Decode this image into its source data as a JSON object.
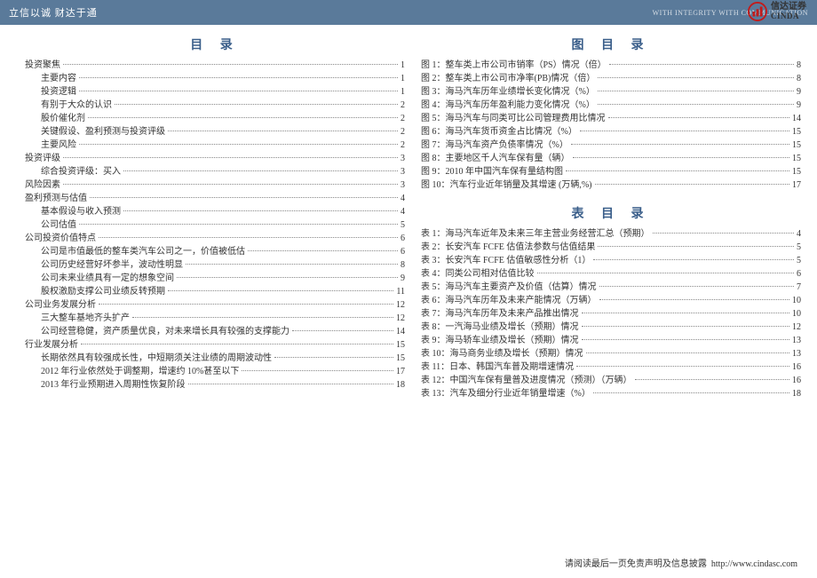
{
  "header": {
    "slogan": "立信以诚  财达于通",
    "eng": "WITH INTEGRITY  WITH COMMUNICATION",
    "logo_cn": "信达证券",
    "logo_en": "CINDA"
  },
  "left": {
    "title": "目  录",
    "items": [
      {
        "label": "投资聚焦",
        "page": "1",
        "ind": 0
      },
      {
        "label": "主要内容",
        "page": "1",
        "ind": 1
      },
      {
        "label": "投资逻辑",
        "page": "1",
        "ind": 1
      },
      {
        "label": "有别于大众的认识",
        "page": "2",
        "ind": 1
      },
      {
        "label": "股价催化剂",
        "page": "2",
        "ind": 1
      },
      {
        "label": "关键假设、盈利预测与投资评级",
        "page": "2",
        "ind": 1
      },
      {
        "label": "主要风险",
        "page": "2",
        "ind": 1
      },
      {
        "label": "投资评级",
        "page": "3",
        "ind": 0
      },
      {
        "label": "综合投资评级：买入",
        "page": "3",
        "ind": 1
      },
      {
        "label": "风险因素",
        "page": "3",
        "ind": 0
      },
      {
        "label": "盈利预测与估值",
        "page": "4",
        "ind": 0
      },
      {
        "label": "基本假设与收入预测",
        "page": "4",
        "ind": 1
      },
      {
        "label": "公司估值",
        "page": "5",
        "ind": 1
      },
      {
        "label": "公司投资价值特点",
        "page": "6",
        "ind": 0
      },
      {
        "label": "公司是市值最低的整车类汽车公司之一，价值被低估",
        "page": "6",
        "ind": 1
      },
      {
        "label": "公司历史经营好坏参半，波动性明显",
        "page": "8",
        "ind": 1
      },
      {
        "label": "公司未来业绩具有一定的想象空间",
        "page": "9",
        "ind": 1
      },
      {
        "label": "股权激励支撑公司业绩反转预期",
        "page": "11",
        "ind": 1
      },
      {
        "label": "公司业务发展分析",
        "page": "12",
        "ind": 0
      },
      {
        "label": "三大整车基地齐头扩产",
        "page": "12",
        "ind": 1
      },
      {
        "label": "公司经营稳健，资产质量优良，对未来增长具有较强的支撑能力",
        "page": "14",
        "ind": 1
      },
      {
        "label": "行业发展分析",
        "page": "15",
        "ind": 0
      },
      {
        "label": "长期依然具有较强成长性，中短期须关注业绩的周期波动性",
        "page": "15",
        "ind": 1
      },
      {
        "label": "2012 年行业依然处于调整期，增速约 10%甚至以下",
        "page": "17",
        "ind": 1
      },
      {
        "label": "2013 年行业预期进入周期性恢复阶段",
        "page": "18",
        "ind": 1
      }
    ]
  },
  "right_fig": {
    "title": "图 目 录",
    "items": [
      {
        "label": "图 1：整车类上市公司市销率（PS）情况（倍）",
        "page": "8"
      },
      {
        "label": "图 2：整车类上市公司市净率(PB)情况（倍）",
        "page": "8"
      },
      {
        "label": "图 3：海马汽车历年业绩增长变化情况（%）",
        "page": "9"
      },
      {
        "label": "图 4：海马汽车历年盈利能力变化情况（%）",
        "page": "9"
      },
      {
        "label": "图 5：海马汽车与同类可比公司管理费用比情况",
        "page": "14"
      },
      {
        "label": "图 6：海马汽车货币资金占比情况（%）",
        "page": "15"
      },
      {
        "label": "图 7：海马汽车资产负债率情况（%）",
        "page": "15"
      },
      {
        "label": "图 8：主要地区千人汽车保有量（辆）",
        "page": "15"
      },
      {
        "label": "图 9：2010 年中国汽车保有量结构图",
        "page": "15"
      },
      {
        "label": "图 10：汽车行业近年销量及其增速 (万辆,%)",
        "page": "17"
      }
    ]
  },
  "right_tab": {
    "title": "表 目 录",
    "items": [
      {
        "label": "表 1：海马汽车近年及未来三年主营业务经营汇总（预期）",
        "page": "4"
      },
      {
        "label": "表 2：长安汽车 FCFE 估值法参数与估值结果",
        "page": "5"
      },
      {
        "label": "表 3：长安汽车 FCFE 估值敏感性分析（1）",
        "page": "5"
      },
      {
        "label": "表 4：同类公司相对估值比较",
        "page": "6"
      },
      {
        "label": "表 5：海马汽车主要资产及价值（估算）情况",
        "page": "7"
      },
      {
        "label": "表 6：海马汽车历年及未来产能情况（万辆）",
        "page": "10"
      },
      {
        "label": "表 7：海马汽车历年及未来产品推出情况",
        "page": "10"
      },
      {
        "label": "表 8：一汽海马业绩及增长（预期）情况",
        "page": "12"
      },
      {
        "label": "表 9：海马轿车业绩及增长（预期）情况",
        "page": "13"
      },
      {
        "label": "表 10：海马商务业绩及增长（预期）情况",
        "page": "13"
      },
      {
        "label": "表 11：日本、韩国汽车普及期增速情况",
        "page": "16"
      },
      {
        "label": "表 12：中国汽车保有量普及进度情况（预测）（万辆）",
        "page": "16"
      },
      {
        "label": "表 13：汽车及细分行业近年销量增速（%）",
        "page": "18"
      }
    ]
  },
  "footer": {
    "text": "请阅读最后一页免责声明及信息披露",
    "url": "http://www.cindasc.com"
  }
}
